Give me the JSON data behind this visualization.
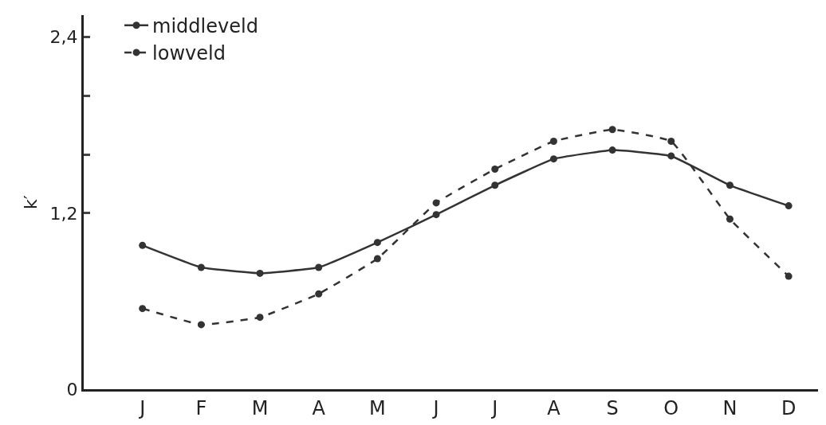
{
  "chart_data": {
    "type": "line",
    "ylabel": "k′",
    "categories": [
      "J",
      "F",
      "M",
      "A",
      "M",
      "J",
      "J",
      "A",
      "S",
      "O",
      "N",
      "D"
    ],
    "series": [
      {
        "name": "middleveld",
        "color": "#333333",
        "line_style": "solid",
        "values": [
          0.98,
          0.83,
          0.79,
          0.83,
          1.0,
          1.19,
          1.39,
          1.57,
          1.63,
          1.59,
          1.39,
          1.25
        ]
      },
      {
        "name": "lowveld",
        "color": "#333333",
        "line_style": "dashed",
        "values": [
          0.55,
          0.44,
          0.49,
          0.65,
          0.89,
          1.27,
          1.5,
          1.69,
          1.77,
          1.69,
          1.16,
          0.77
        ]
      }
    ],
    "ylim": [
      0,
      2.55
    ],
    "yticks": [
      0,
      {
        "value": 1.6,
        "label": null
      },
      {
        "value": 2.0,
        "label": null
      },
      {
        "value": 1.2,
        "label": "1,2"
      },
      {
        "value": 2.4,
        "label": "2,4"
      }
    ],
    "grid": false,
    "legend": "top left",
    "marker": "circle"
  }
}
